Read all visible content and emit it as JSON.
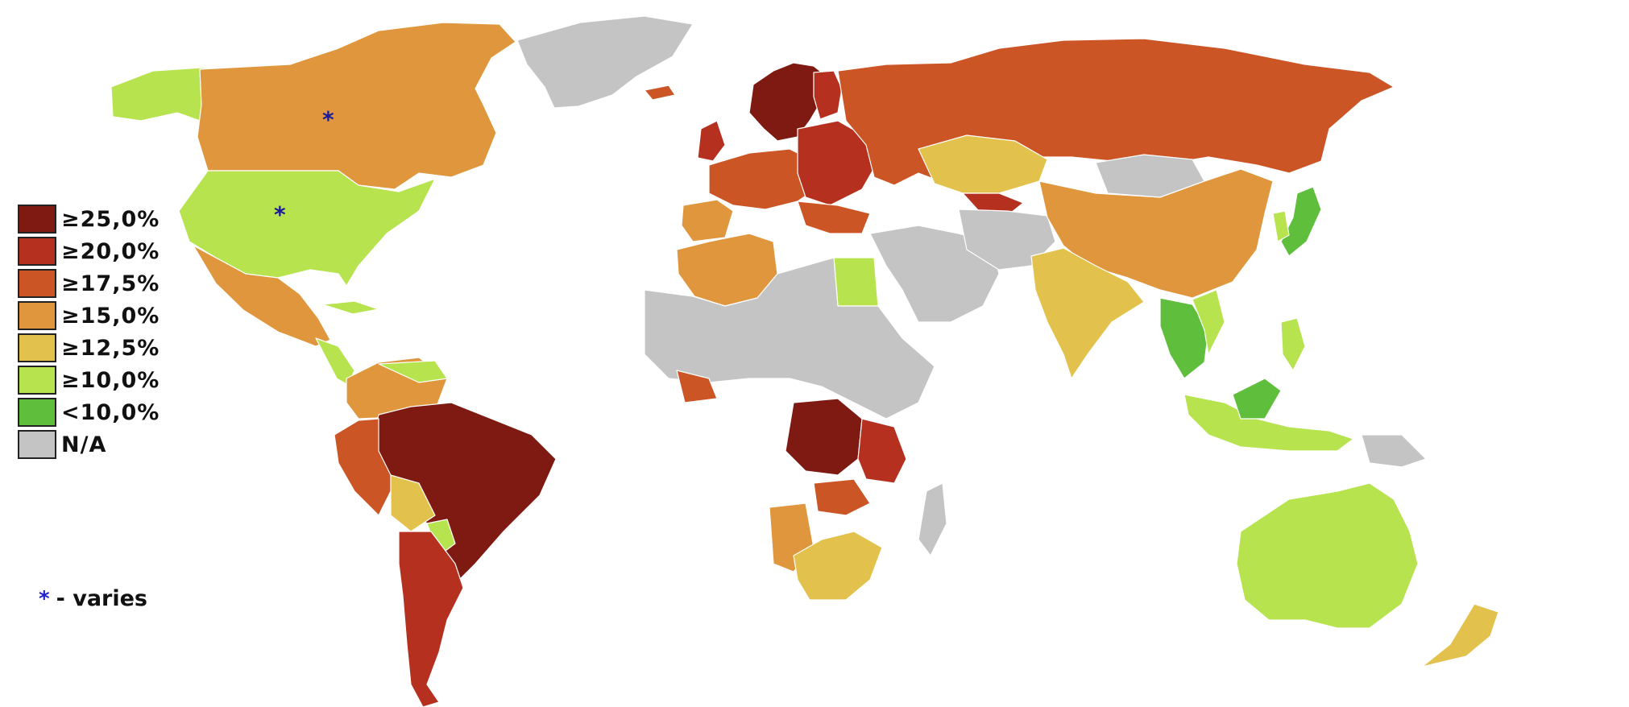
{
  "legend": {
    "items": [
      {
        "label": "≥25,0%",
        "color": "#7e1a12"
      },
      {
        "label": "≥20,0%",
        "color": "#b5301f"
      },
      {
        "label": "≥17,5%",
        "color": "#cc5526"
      },
      {
        "label": "≥15,0%",
        "color": "#e0963c"
      },
      {
        "label": "≥12,5%",
        "color": "#e2c24c"
      },
      {
        "label": "≥10,0%",
        "color": "#b6e34e"
      },
      {
        "label": "<10,0%",
        "color": "#5fbf3c"
      },
      {
        "label": "N/A",
        "color": "#c4c4c4"
      }
    ]
  },
  "note": {
    "symbol": "*",
    "text": "- varies"
  },
  "asterisks": {
    "canada": "*",
    "usa": "*"
  },
  "colors": {
    "ge25": "#7e1a12",
    "ge20": "#b5301f",
    "ge175": "#cc5526",
    "ge15": "#e0963c",
    "ge125": "#e2c24c",
    "ge10": "#b6e34e",
    "lt10": "#5fbf3c",
    "na": "#c4c4c4"
  }
}
